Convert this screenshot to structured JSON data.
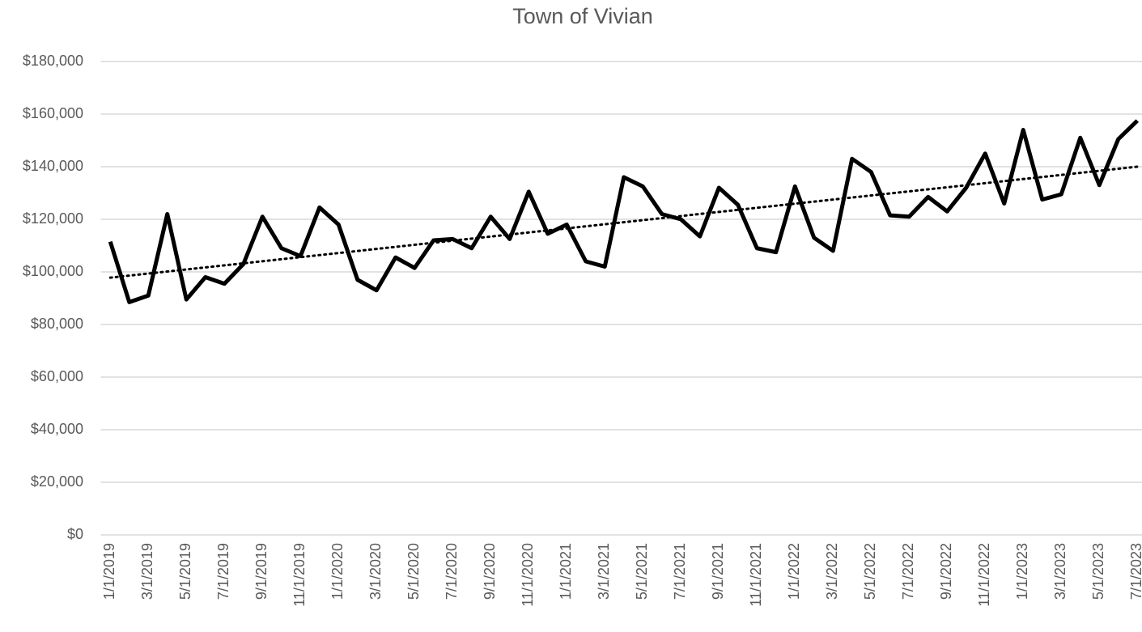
{
  "chart_data": {
    "type": "line",
    "title": "Town of Vivian",
    "categories": [
      "1/1/2019",
      null,
      "3/1/2019",
      null,
      "5/1/2019",
      null,
      "7/1/2019",
      null,
      "9/1/2019",
      null,
      "11/1/2019",
      null,
      "1/1/2020",
      null,
      "3/1/2020",
      null,
      "5/1/2020",
      null,
      "7/1/2020",
      null,
      "9/1/2020",
      null,
      "11/1/2020",
      null,
      "1/1/2021",
      null,
      "3/1/2021",
      null,
      "5/1/2021",
      null,
      "7/1/2021",
      null,
      "9/1/2021",
      null,
      "11/1/2021",
      null,
      "1/1/2022",
      null,
      "3/1/2022",
      null,
      "5/1/2022",
      null,
      "7/1/2022",
      null,
      "9/1/2022",
      null,
      "11/1/2022",
      null,
      "1/1/2023",
      null,
      "3/1/2023",
      null,
      "5/1/2023",
      null,
      "7/1/2023"
    ],
    "values": [
      111500,
      88500,
      91000,
      122000,
      89500,
      98000,
      95500,
      103000,
      121000,
      109000,
      106000,
      124500,
      118000,
      97000,
      93000,
      105500,
      101500,
      112000,
      112500,
      109000,
      121000,
      112500,
      130500,
      114500,
      118000,
      104000,
      102000,
      136000,
      132500,
      122000,
      120000,
      113500,
      132000,
      125500,
      109000,
      107500,
      132500,
      113000,
      108000,
      143000,
      138000,
      121500,
      121000,
      128500,
      123000,
      132000,
      145000,
      126000,
      154000,
      127500,
      129500,
      151000,
      133000,
      150500,
      157500
    ],
    "color": "#000000",
    "trendline": {
      "values": [
        97800,
        140000
      ],
      "color": "#000000",
      "style": "dotted"
    },
    "ylim": [
      0,
      180000
    ],
    "yticks": [
      {
        "value": 0,
        "label": "$0"
      },
      {
        "value": 20000,
        "label": "$20,000"
      },
      {
        "value": 40000,
        "label": "$40,000"
      },
      {
        "value": 60000,
        "label": "$60,000"
      },
      {
        "value": 80000,
        "label": "$80,000"
      },
      {
        "value": 100000,
        "label": "$100,000"
      },
      {
        "value": 120000,
        "label": "$120,000"
      },
      {
        "value": 140000,
        "label": "$140,000"
      },
      {
        "value": 160000,
        "label": "$160,000"
      },
      {
        "value": 180000,
        "label": "$180,000"
      }
    ],
    "grid": true
  }
}
